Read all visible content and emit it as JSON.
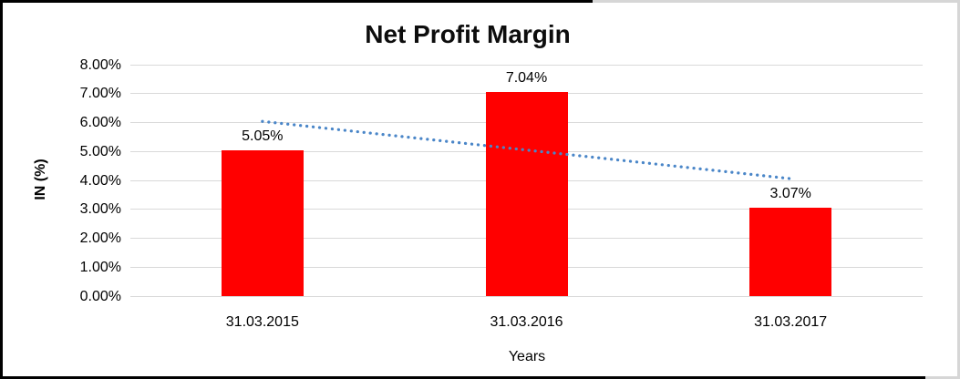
{
  "frame": {
    "background": "#ffffff"
  },
  "chart_data": {
    "type": "bar",
    "title": "Net Profit Margin",
    "categories": [
      "31.03.2015",
      "31.03.2016",
      "31.03.2017"
    ],
    "values": [
      5.05,
      7.04,
      3.07
    ],
    "bar_labels": [
      "5.05%",
      "7.04%",
      "3.07%"
    ],
    "xlabel": "Years",
    "ylabel": "IN (%)",
    "ylim": [
      0,
      8
    ],
    "ytick_step": 1,
    "ytick_labels": [
      "0.00%",
      "1.00%",
      "2.00%",
      "3.00%",
      "4.00%",
      "5.00%",
      "6.00%",
      "7.00%",
      "8.00%"
    ],
    "grid": true,
    "legend": "none",
    "colors": {
      "bar": "#ff0000",
      "trendline": "#4a86c8",
      "gridline": "#d9d9d9",
      "text": "#000000"
    },
    "trendline": {
      "type": "linear",
      "style": "dotted",
      "start_value": 6.04,
      "end_value": 4.06
    }
  }
}
